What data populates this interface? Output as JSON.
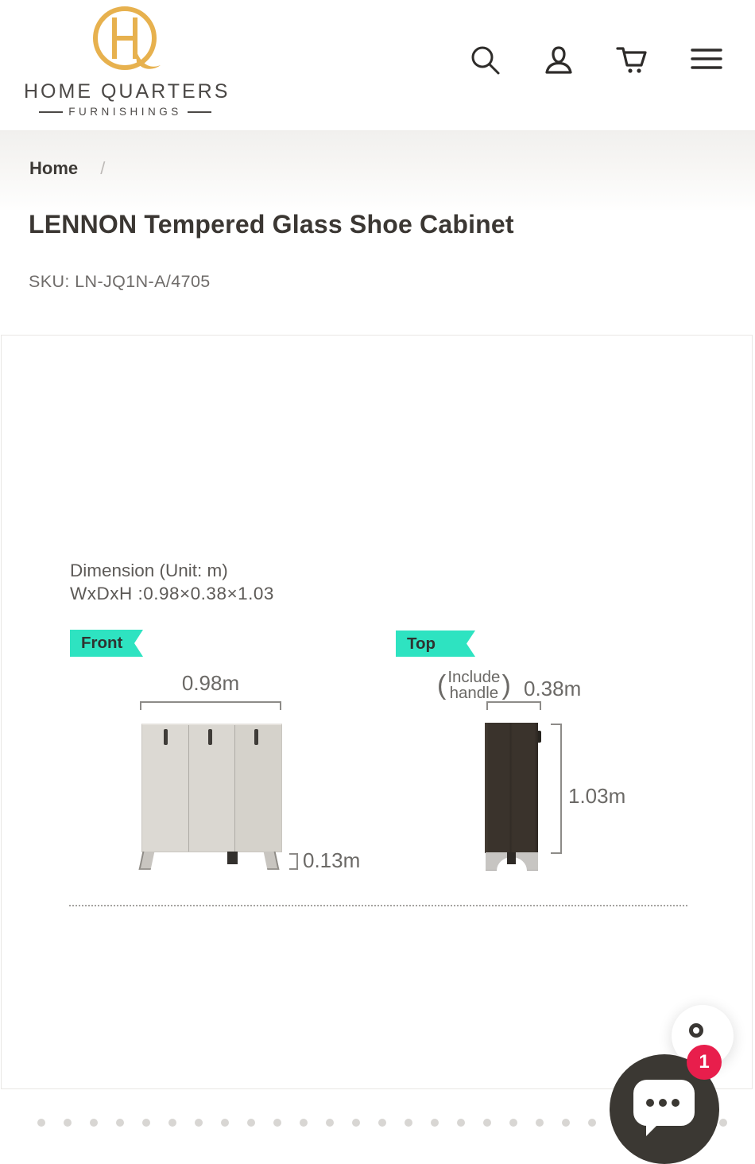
{
  "header": {
    "logo_title": "HOME QUARTERS",
    "logo_subtitle": "FURNISHINGS",
    "monogram": "HQ"
  },
  "breadcrumb": {
    "home": "Home",
    "separator": "/"
  },
  "product": {
    "title": "LENNON Tempered Glass Shoe Cabinet",
    "sku": "SKU: LN-JQ1N-A/4705"
  },
  "diagram": {
    "dimension_title": "Dimension (Unit: m)",
    "dimension_value": "WxDxH :0.98×0.38×1.03",
    "front_tag": "Front",
    "top_tag": "Top",
    "front_width": "0.98m",
    "leg_height": "0.13m",
    "paren_open": "(",
    "include_handle_line1": "Include",
    "include_handle_line2": "handle",
    "paren_close": ")",
    "depth": "0.38m",
    "height": "1.03m"
  },
  "chat": {
    "unread_count": "1"
  },
  "colors": {
    "accent_teal": "#2ee3c1",
    "badge_red": "#e81e4c",
    "logo_gold": "#e7b14e",
    "icon_dark": "#2e2c2a",
    "chat_dark": "#3b3833"
  }
}
